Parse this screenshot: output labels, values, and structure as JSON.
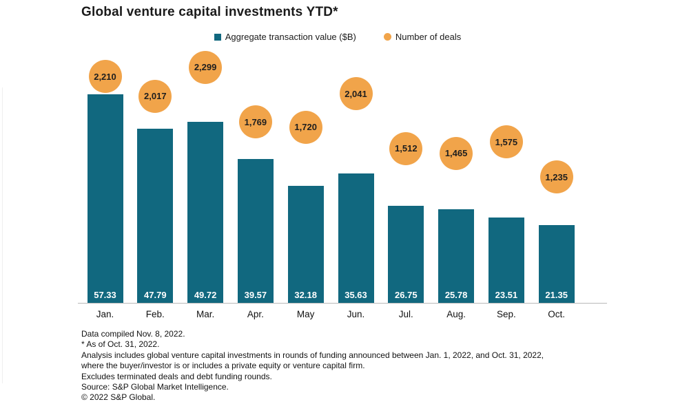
{
  "title": "Global venture capital investments YTD*",
  "legend": {
    "bar_label": "Aggregate transaction value ($B)",
    "deals_label": "Number of deals"
  },
  "colors": {
    "bar": "#11687F",
    "deals": "#F1A44A",
    "axis_line": "#B8B8B8",
    "bar_value_text": "#FFFFFF",
    "bubble_text": "#1E1E1E",
    "text": "#1A1A1A"
  },
  "chart_data": {
    "type": "bar",
    "title": "Global venture capital investments YTD*",
    "categories": [
      "Jan.",
      "Feb.",
      "Mar.",
      "Apr.",
      "May",
      "Jun.",
      "Jul.",
      "Aug.",
      "Sep.",
      "Oct."
    ],
    "series": [
      {
        "name": "Aggregate transaction value ($B)",
        "type": "bar",
        "values": [
          57.33,
          47.79,
          49.72,
          39.57,
          32.18,
          35.63,
          26.75,
          25.78,
          23.51,
          21.35
        ],
        "labels": [
          "57.33",
          "47.79",
          "49.72",
          "39.57",
          "32.18",
          "35.63",
          "26.75",
          "25.78",
          "23.51",
          "21.35"
        ]
      },
      {
        "name": "Number of deals",
        "type": "point",
        "values": [
          2210,
          2017,
          2299,
          1769,
          1720,
          2041,
          1512,
          1465,
          1575,
          1235
        ],
        "labels": [
          "2,210",
          "2,017",
          "2,299",
          "1,769",
          "1,720",
          "2,041",
          "1,512",
          "1,465",
          "1,575",
          "1,235"
        ]
      }
    ],
    "xlabel": "",
    "ylabel": "",
    "legend_position": "top",
    "grid": false,
    "y_axis_visible": false,
    "value_labels_position": "inside-bar-bottom"
  },
  "footnotes": {
    "lines": [
      "Data compiled Nov. 8, 2022.",
      "* As of Oct. 31, 2022.",
      "Analysis includes global venture capital investments in rounds of funding announced between Jan. 1, 2022, and Oct. 31, 2022,",
      "where the buyer/investor is or includes a private equity or venture capital firm.",
      "Excludes terminated deals and debt funding rounds.",
      "Source: S&P Global Market Intelligence.",
      "© 2022 S&P Global."
    ]
  }
}
